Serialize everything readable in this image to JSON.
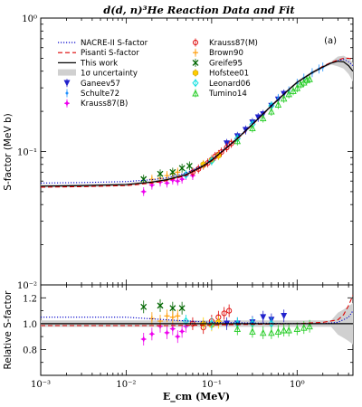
{
  "chart_data": [
    {
      "type": "line",
      "panel": "main",
      "title": "d(d, n)³He Reaction Data and Fit",
      "panel_tag": "(a)",
      "xlabel": "E_cm (MeV)",
      "ylabel": "S-factor (MeV b)",
      "xscale": "log",
      "yscale": "log",
      "xlim": [
        0.001,
        4.5
      ],
      "ylim": [
        0.01,
        1.0
      ],
      "x_ticks": [
        "10⁻³",
        "10⁻²",
        "10⁻¹",
        "10⁰"
      ],
      "y_ticks": [
        "10⁻²",
        "10⁻¹",
        "10⁰"
      ],
      "legend_position": "top-left (two columns)",
      "curves": [
        {
          "name": "NACRE-II S-factor",
          "color": "#0000cc",
          "style": "dotted",
          "x": [
            0.001,
            0.003,
            0.01,
            0.02,
            0.03,
            0.05,
            0.08,
            0.1,
            0.2,
            0.3,
            0.5,
            0.8,
            1.0,
            1.5,
            2.0,
            2.5,
            3.0,
            3.5,
            4.0,
            4.5
          ],
          "y": [
            0.058,
            0.0585,
            0.0595,
            0.0615,
            0.0635,
            0.069,
            0.079,
            0.087,
            0.126,
            0.161,
            0.221,
            0.292,
            0.33,
            0.39,
            0.43,
            0.46,
            0.48,
            0.49,
            0.47,
            0.44
          ]
        },
        {
          "name": "Pisanti S-factor",
          "color": "#dd0000",
          "style": "dashed",
          "x": [
            0.001,
            0.003,
            0.01,
            0.02,
            0.03,
            0.05,
            0.08,
            0.1,
            0.2,
            0.3,
            0.5,
            0.8,
            1.0,
            1.5,
            2.0,
            2.5,
            3.0,
            3.5,
            4.0,
            4.5
          ],
          "y": [
            0.054,
            0.0545,
            0.0555,
            0.058,
            0.0605,
            0.066,
            0.077,
            0.085,
            0.124,
            0.159,
            0.219,
            0.292,
            0.33,
            0.39,
            0.435,
            0.465,
            0.485,
            0.5,
            0.5,
            0.49
          ]
        },
        {
          "name": "This work",
          "color": "#000000",
          "style": "solid",
          "x": [
            0.001,
            0.003,
            0.01,
            0.02,
            0.03,
            0.05,
            0.08,
            0.1,
            0.2,
            0.3,
            0.5,
            0.8,
            1.0,
            1.5,
            2.0,
            2.5,
            3.0,
            3.5,
            4.0,
            4.5
          ],
          "y": [
            0.055,
            0.0555,
            0.0565,
            0.059,
            0.0615,
            0.067,
            0.078,
            0.086,
            0.125,
            0.16,
            0.22,
            0.291,
            0.33,
            0.39,
            0.43,
            0.46,
            0.475,
            0.47,
            0.44,
            0.4
          ]
        },
        {
          "name": "1σ uncertainty",
          "color": "#cccccc",
          "style": "band"
        }
      ],
      "series": [
        {
          "name": "Ganeev57",
          "color": "#2222cc",
          "marker": "triangle-down",
          "x": [
            0.15,
            0.2,
            0.25,
            0.3,
            0.35,
            0.4,
            0.5,
            0.6,
            0.7
          ],
          "y": [
            0.115,
            0.13,
            0.145,
            0.165,
            0.18,
            0.19,
            0.22,
            0.245,
            0.27
          ]
        },
        {
          "name": "Schulte72",
          "color": "#1e90ff",
          "marker": "dot",
          "x": [
            0.6,
            0.8,
            1.0,
            1.2,
            1.5,
            1.8,
            2.0
          ],
          "y": [
            0.25,
            0.285,
            0.325,
            0.355,
            0.39,
            0.415,
            0.43
          ]
        },
        {
          "name": "Krauss87(B)",
          "color": "#ee00ee",
          "marker": "star",
          "x": [
            0.016,
            0.02,
            0.025,
            0.03,
            0.035,
            0.04,
            0.045,
            0.05,
            0.06
          ],
          "y": [
            0.05,
            0.056,
            0.059,
            0.058,
            0.061,
            0.06,
            0.062,
            0.066,
            0.066
          ]
        },
        {
          "name": "Krauss87(M)",
          "color": "#dd0000",
          "marker": "circle",
          "x": [
            0.06,
            0.07,
            0.08,
            0.09,
            0.1,
            0.11,
            0.12,
            0.13,
            0.15,
            0.17
          ],
          "y": [
            0.07,
            0.074,
            0.079,
            0.082,
            0.087,
            0.092,
            0.095,
            0.099,
            0.107,
            0.115
          ]
        },
        {
          "name": "Brown90",
          "color": "#ff9900",
          "marker": "plus",
          "x": [
            0.02,
            0.025,
            0.03,
            0.035,
            0.04
          ],
          "y": [
            0.062,
            0.063,
            0.066,
            0.068,
            0.07
          ]
        },
        {
          "name": "Greife95",
          "color": "#006600",
          "marker": "x",
          "x": [
            0.016,
            0.025,
            0.035,
            0.045,
            0.055
          ],
          "y": [
            0.062,
            0.068,
            0.07,
            0.075,
            0.078
          ]
        },
        {
          "name": "Hofstee01",
          "color": "#ffcc00",
          "marker": "hexagon",
          "x": [
            0.08,
            0.1,
            0.12
          ],
          "y": [
            0.08,
            0.086,
            0.093
          ]
        },
        {
          "name": "Leonard06",
          "color": "#00dddd",
          "marker": "diamond",
          "x": [
            0.05,
            0.1,
            0.2,
            0.3,
            0.5
          ],
          "y": [
            0.067,
            0.085,
            0.125,
            0.16,
            0.22
          ]
        },
        {
          "name": "Tumino14",
          "color": "#22cc22",
          "marker": "triangle-up",
          "x": [
            0.2,
            0.3,
            0.4,
            0.5,
            0.6,
            0.7,
            0.8,
            0.9,
            1.0,
            1.1,
            1.2,
            1.3,
            1.4
          ],
          "y": [
            0.12,
            0.15,
            0.178,
            0.2,
            0.225,
            0.25,
            0.27,
            0.285,
            0.3,
            0.32,
            0.33,
            0.345,
            0.35
          ]
        }
      ]
    },
    {
      "type": "line",
      "panel": "ratio",
      "xlabel": "E_cm (MeV)",
      "ylabel": "Relative S-factor",
      "xscale": "log",
      "xlim": [
        0.001,
        4.5
      ],
      "ylim": [
        0.6,
        1.3
      ],
      "y_ticks": [
        "0.8",
        "1.0",
        "1.2"
      ],
      "curves": [
        {
          "name": "NACRE-II S-factor",
          "x": [
            0.001,
            0.01,
            0.03,
            0.1,
            0.3,
            1.0,
            2.0,
            3.0,
            4.0,
            4.5
          ],
          "y": [
            1.05,
            1.05,
            1.03,
            1.01,
            1.005,
            1.0,
            1.0,
            1.01,
            1.05,
            1.1
          ]
        },
        {
          "name": "Pisanti S-factor",
          "x": [
            0.001,
            0.01,
            0.03,
            0.1,
            0.3,
            1.0,
            2.0,
            3.0,
            3.5,
            4.0,
            4.5
          ],
          "y": [
            0.985,
            0.985,
            0.985,
            0.99,
            0.995,
            1.0,
            1.01,
            1.03,
            1.07,
            1.14,
            1.22
          ]
        },
        {
          "name": "This work",
          "x": [
            0.001,
            4.5
          ],
          "y": [
            1.0,
            1.0
          ]
        }
      ],
      "series": [
        {
          "name": "Ganeev57",
          "x": [
            0.15,
            0.2,
            0.3,
            0.4,
            0.5,
            0.7
          ],
          "y": [
            1.0,
            1.0,
            1.01,
            1.05,
            1.03,
            1.06
          ]
        },
        {
          "name": "Krauss87(B)",
          "x": [
            0.016,
            0.02,
            0.025,
            0.03,
            0.035,
            0.04,
            0.045,
            0.05
          ],
          "y": [
            0.88,
            0.92,
            0.98,
            0.93,
            0.96,
            0.9,
            0.94,
            0.98
          ]
        },
        {
          "name": "Krauss87(M)",
          "x": [
            0.06,
            0.08,
            0.1,
            0.12,
            0.14,
            0.16
          ],
          "y": [
            1.0,
            0.97,
            1.02,
            1.05,
            1.08,
            1.1
          ]
        },
        {
          "name": "Greife95",
          "x": [
            0.016,
            0.025,
            0.035,
            0.045
          ],
          "y": [
            1.13,
            1.14,
            1.12,
            1.12
          ]
        },
        {
          "name": "Brown90",
          "x": [
            0.02,
            0.025,
            0.03,
            0.035,
            0.04
          ],
          "y": [
            1.04,
            1.02,
            1.06,
            1.05,
            1.06
          ]
        },
        {
          "name": "Hofstee01",
          "x": [
            0.08,
            0.1,
            0.12
          ],
          "y": [
            1.0,
            0.99,
            1.01
          ]
        },
        {
          "name": "Leonard06",
          "x": [
            0.05,
            0.1,
            0.2,
            0.3,
            0.5
          ],
          "y": [
            1.02,
            1.0,
            1.0,
            1.0,
            1.0
          ]
        },
        {
          "name": "Tumino14",
          "x": [
            0.2,
            0.3,
            0.4,
            0.5,
            0.6,
            0.7,
            0.8,
            1.0,
            1.2,
            1.4
          ],
          "y": [
            0.96,
            0.94,
            0.93,
            0.93,
            0.94,
            0.95,
            0.95,
            0.96,
            0.97,
            0.98
          ]
        }
      ]
    }
  ]
}
